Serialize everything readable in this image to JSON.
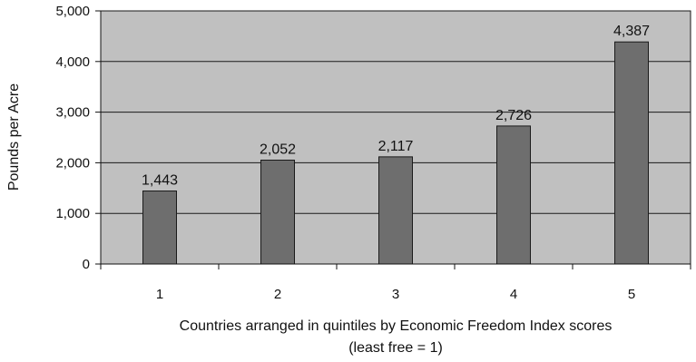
{
  "chart_data": {
    "type": "bar",
    "categories": [
      "1",
      "2",
      "3",
      "4",
      "5"
    ],
    "values": [
      1443,
      2052,
      2117,
      2726,
      4387
    ],
    "value_labels": [
      "1,443",
      "2,052",
      "2,117",
      "2,726",
      "4,387"
    ],
    "ylabel": "Pounds per Acre",
    "xlabel_line1": "Countries arranged in quintiles by Economic Freedom Index scores",
    "xlabel_line2": "(least free = 1)",
    "ylim": [
      0,
      5000
    ],
    "yticks": [
      0,
      1000,
      2000,
      3000,
      4000,
      5000
    ],
    "ytick_labels": [
      "0",
      "1,000",
      "2,000",
      "3,000",
      "4,000",
      "5,000"
    ],
    "grid": true,
    "colors": {
      "plot_background": "#c0c0c0",
      "bar_fill": "#6e6e6e",
      "bar_stroke": "#1a1a1a",
      "grid": "#1a1a1a"
    }
  }
}
